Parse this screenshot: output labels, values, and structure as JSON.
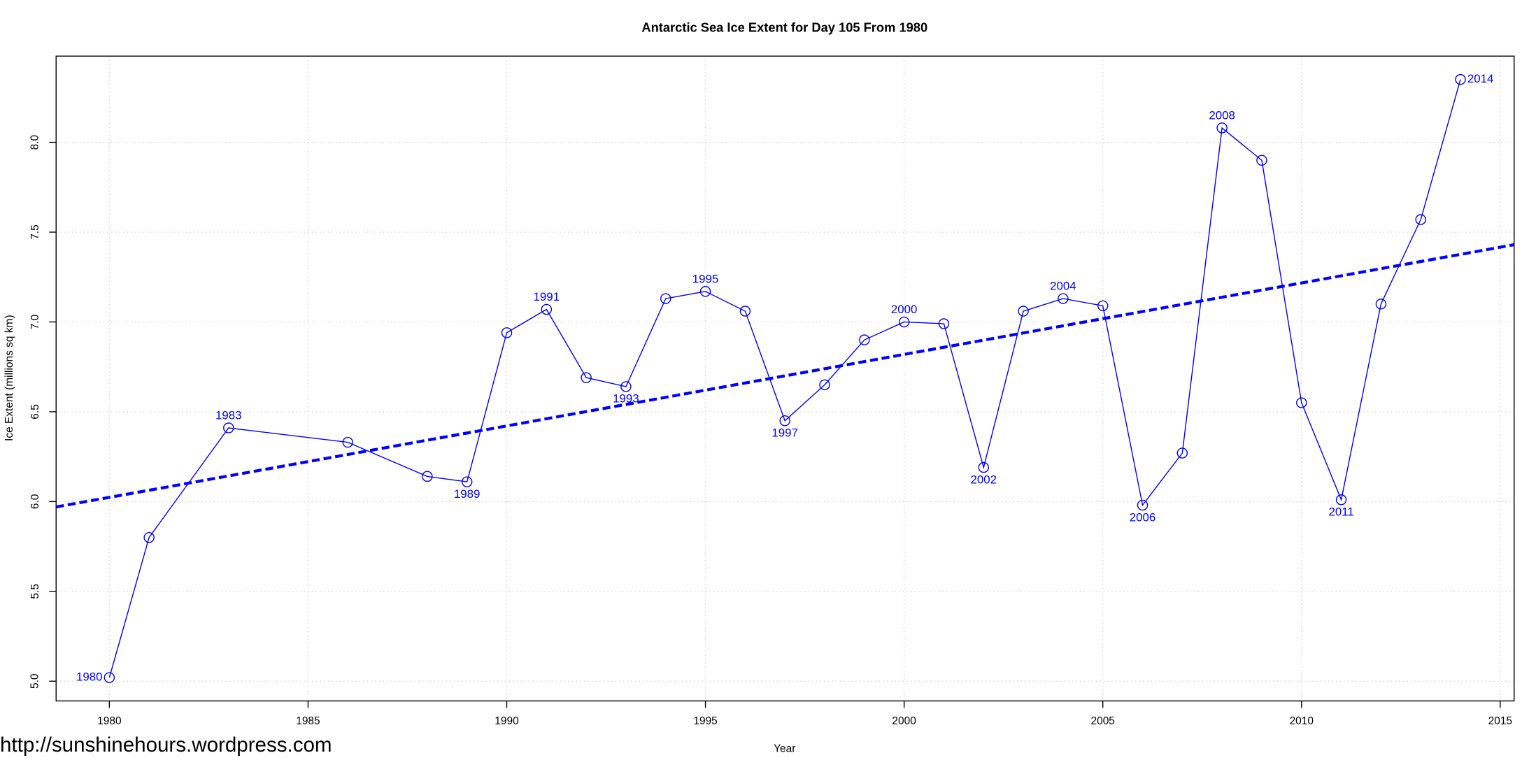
{
  "chart_data": {
    "type": "line",
    "title": "Antarctic Sea Ice Extent for Day 105 From 1980",
    "x_label": "Year",
    "y_label": "Ice Extent (millions sq km)",
    "series": [
      {
        "color": "#0000ff",
        "marker": "circle",
        "x": [
          1980,
          1981,
          1983,
          1986,
          1988,
          1989,
          1990,
          1991,
          1992,
          1993,
          1994,
          1995,
          1996,
          1997,
          1998,
          1999,
          2000,
          2001,
          2002,
          2003,
          2004,
          2005,
          2006,
          2007,
          2008,
          2009,
          2010,
          2011,
          2012,
          2013,
          2014
        ],
        "values": [
          5.02,
          5.8,
          6.41,
          6.33,
          6.14,
          6.11,
          6.94,
          7.07,
          6.69,
          6.64,
          7.13,
          7.17,
          7.06,
          6.45,
          6.65,
          6.9,
          7.0,
          6.99,
          6.19,
          7.06,
          7.13,
          7.09,
          5.98,
          6.27,
          8.08,
          7.9,
          6.55,
          6.01,
          7.1,
          7.57,
          8.35
        ]
      },
      {
        "color": "#0000ff",
        "dash": true,
        "x": [
          1978.66,
          2015.35
        ],
        "values": [
          5.97,
          7.43
        ]
      }
    ],
    "annotations": [
      {
        "text": "1980",
        "x": 1980,
        "position": "left"
      },
      {
        "text": "1983",
        "x": 1983,
        "position": "above"
      },
      {
        "text": "1989",
        "x": 1989,
        "position": "below"
      },
      {
        "text": "1991",
        "x": 1991,
        "position": "above"
      },
      {
        "text": "1993",
        "x": 1993,
        "position": "below"
      },
      {
        "text": "1995",
        "x": 1995,
        "position": "above"
      },
      {
        "text": "1997",
        "x": 1997,
        "position": "below"
      },
      {
        "text": "2000",
        "x": 2000,
        "position": "above"
      },
      {
        "text": "2002",
        "x": 2002,
        "position": "below"
      },
      {
        "text": "2004",
        "x": 2004,
        "position": "above"
      },
      {
        "text": "2006",
        "x": 2006,
        "position": "below"
      },
      {
        "text": "2008",
        "x": 2008,
        "position": "above"
      },
      {
        "text": "2011",
        "x": 2011,
        "position": "below"
      },
      {
        "text": "2014",
        "x": 2014,
        "position": "right"
      }
    ],
    "xlim": [
      1978.66,
      2015.35
    ],
    "xticks": [
      1980,
      1985,
      1990,
      1995,
      2000,
      2005,
      2010,
      2015
    ],
    "ylim": [
      4.89,
      8.48
    ],
    "yticks": [
      {
        "value": 5,
        "label": "5.0"
      },
      5.5,
      {
        "value": 6,
        "label": "6.0"
      },
      6.5,
      {
        "value": 7,
        "label": "7.0"
      },
      7.5,
      {
        "value": 8,
        "label": "8.0"
      }
    ],
    "grid": true,
    "watermark": "http://sunshinehours.wordpress.com"
  }
}
